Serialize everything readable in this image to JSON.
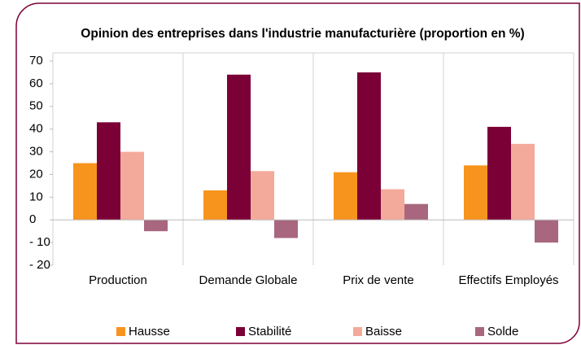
{
  "chart_data": {
    "type": "bar",
    "title": "Opinion des entreprises dans l'industrie manufacturière (proportion en %)",
    "categories": [
      "Production",
      "Demande Globale",
      "Prix de vente",
      "Effectifs Employés"
    ],
    "series": [
      {
        "name": "Hausse",
        "color": "#f7941d",
        "values": [
          25,
          13,
          21,
          24
        ]
      },
      {
        "name": "Stabilité",
        "color": "#7b0036",
        "values": [
          43,
          64,
          65,
          41
        ]
      },
      {
        "name": "Baisse",
        "color": "#f4aa9a",
        "values": [
          30,
          21.5,
          13.5,
          33.5
        ]
      },
      {
        "name": "Solde",
        "color": "#a8677f",
        "values": [
          -5,
          -8,
          7,
          -10
        ]
      }
    ],
    "ylim": [
      -20,
      70
    ],
    "yticks": [
      {
        "value": -20,
        "label": "- 20"
      },
      {
        "value": -10,
        "label": "- 10"
      },
      0,
      10,
      20,
      30,
      40,
      50,
      60,
      70
    ],
    "grid": false,
    "legend": "bottom"
  }
}
